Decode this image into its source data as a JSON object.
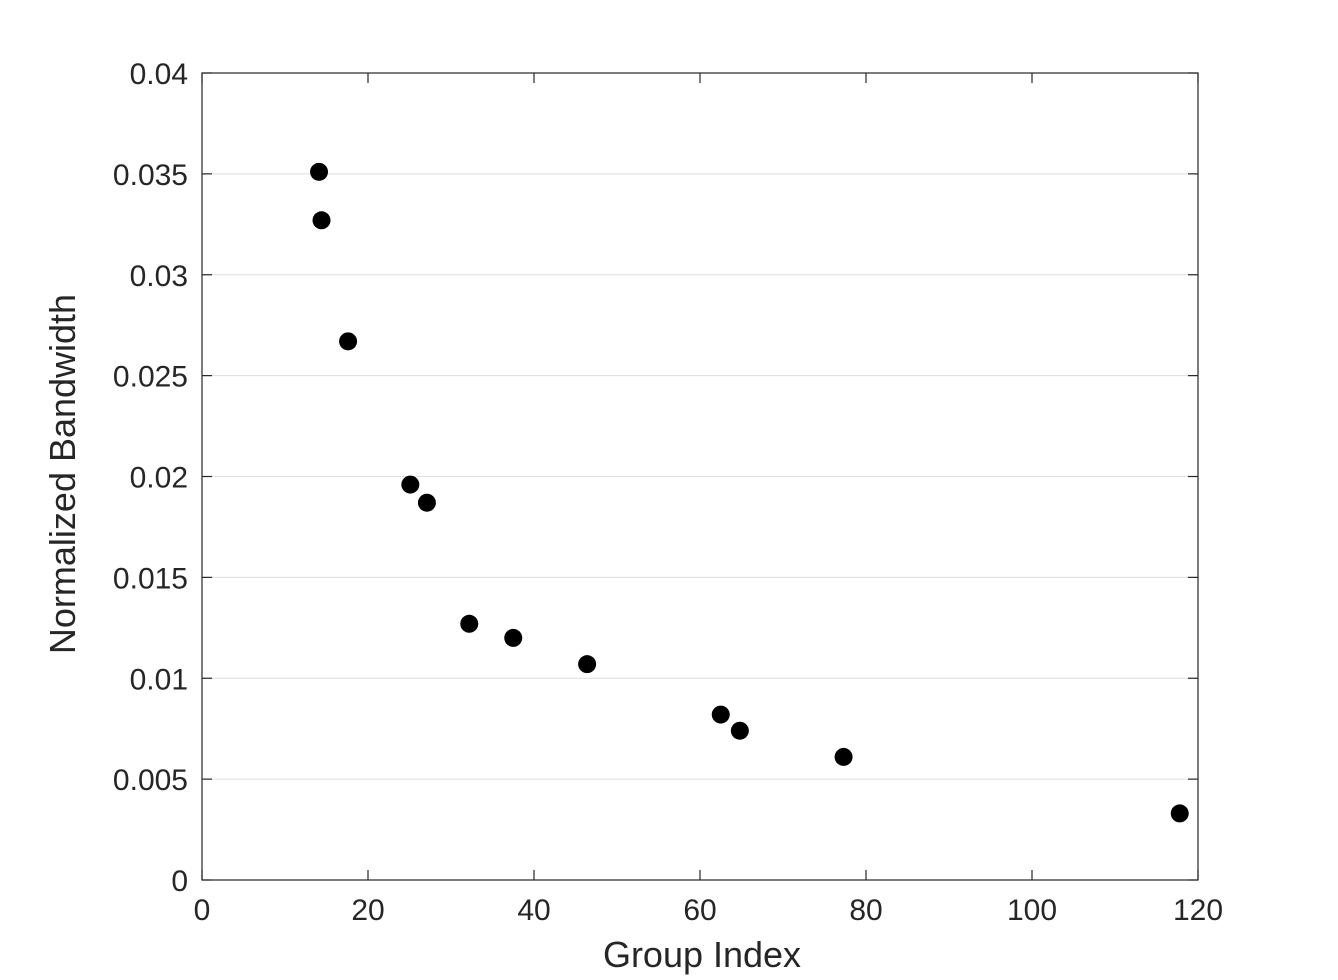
{
  "chart_data": {
    "type": "scatter",
    "title": "",
    "xlabel": "Group Index",
    "ylabel": "Normalized Bandwidth",
    "xlim": [
      0,
      120
    ],
    "ylim": [
      0,
      0.04
    ],
    "xticks": [
      "0",
      "20",
      "40",
      "60",
      "80",
      "100",
      "120"
    ],
    "yticks": [
      "0",
      "0.005",
      "0.01",
      "0.015",
      "0.02",
      "0.025",
      "0.03",
      "0.035",
      "0.04"
    ],
    "grid": "y-major",
    "marker_color": "#000000",
    "series": [
      {
        "points": [
          {
            "x": 14.1,
            "y": 0.0351
          },
          {
            "x": 14.4,
            "y": 0.0327
          },
          {
            "x": 17.6,
            "y": 0.0267
          },
          {
            "x": 25.1,
            "y": 0.0196
          },
          {
            "x": 27.1,
            "y": 0.0187
          },
          {
            "x": 32.2,
            "y": 0.0127
          },
          {
            "x": 37.5,
            "y": 0.012
          },
          {
            "x": 46.4,
            "y": 0.0107
          },
          {
            "x": 62.5,
            "y": 0.0082
          },
          {
            "x": 64.8,
            "y": 0.0074
          },
          {
            "x": 77.3,
            "y": 0.0061
          },
          {
            "x": 117.8,
            "y": 0.0033
          }
        ]
      }
    ]
  }
}
